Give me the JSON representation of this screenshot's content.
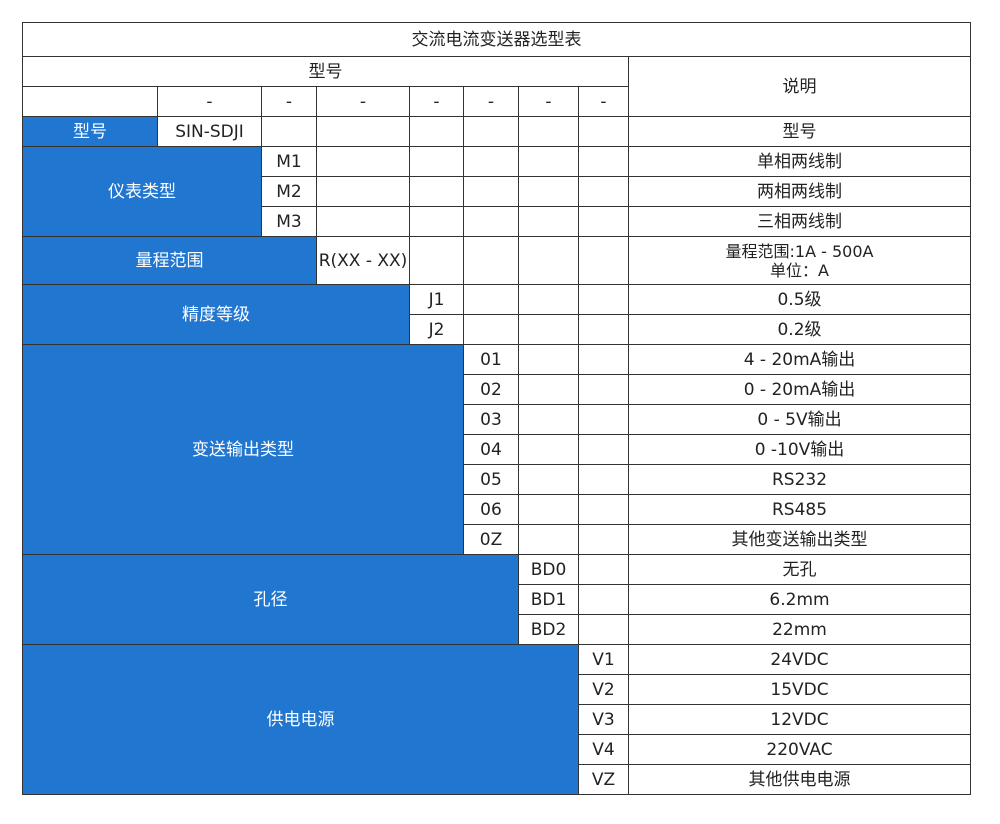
{
  "title": "交流电流变送器选型表",
  "header": {
    "model_label": "型号",
    "desc_label": "说明",
    "separators": [
      "-",
      "-",
      "-",
      "-",
      "-",
      "-",
      "-"
    ]
  },
  "colors": {
    "category_fill": "#2176d0"
  },
  "sections": [
    {
      "category": "型号",
      "rows": [
        {
          "code": "SIN-SDJI",
          "desc": "型号"
        }
      ]
    },
    {
      "category": "仪表类型",
      "rows": [
        {
          "code": "M1",
          "desc": "单相两线制"
        },
        {
          "code": "M2",
          "desc": "两相两线制"
        },
        {
          "code": "M3",
          "desc": "三相两线制"
        }
      ]
    },
    {
      "category": "量程范围",
      "rows": [
        {
          "code": "R(XX - XX)",
          "desc": "量程范围:1A - 500A",
          "desc2": "单位：A"
        }
      ]
    },
    {
      "category": "精度等级",
      "rows": [
        {
          "code": "J1",
          "desc": "0.5级"
        },
        {
          "code": "J2",
          "desc": "0.2级"
        }
      ]
    },
    {
      "category": "变送输出类型",
      "rows": [
        {
          "code": "01",
          "desc": "4 - 20mA输出"
        },
        {
          "code": "02",
          "desc": "0 - 20mA输出"
        },
        {
          "code": "03",
          "desc": "0 - 5V输出"
        },
        {
          "code": "04",
          "desc": "0 -10V输出"
        },
        {
          "code": "05",
          "desc": "RS232"
        },
        {
          "code": "06",
          "desc": "RS485"
        },
        {
          "code": "0Z",
          "desc": "其他变送输出类型"
        }
      ]
    },
    {
      "category": "孔径",
      "rows": [
        {
          "code": "BD0",
          "desc": "无孔"
        },
        {
          "code": "BD1",
          "desc": "6.2mm"
        },
        {
          "code": "BD2",
          "desc": "22mm"
        }
      ]
    },
    {
      "category": "供电电源",
      "rows": [
        {
          "code": "V1",
          "desc": "24VDC"
        },
        {
          "code": "V2",
          "desc": "15VDC"
        },
        {
          "code": "V3",
          "desc": "12VDC"
        },
        {
          "code": "V4",
          "desc": "220VAC"
        },
        {
          "code": "VZ",
          "desc": "其他供电电源"
        }
      ]
    }
  ]
}
